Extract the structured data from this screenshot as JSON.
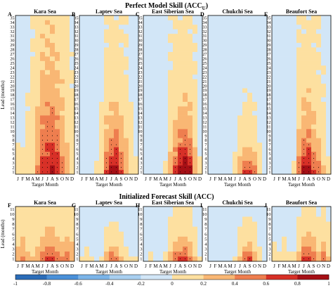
{
  "figure": {
    "top_title_prefix": "Perfect Model Skill (ACC",
    "top_title_sub": "U",
    "top_title_suffix": ")",
    "bottom_title": "Initialized Forecast Skill (ACC)"
  },
  "colors": {
    "scale": [
      "#2b6cb8",
      "#4a90d9",
      "#7bb4e8",
      "#a8cff0",
      "#d2e6f7",
      "#ffffff",
      "#fff2cc",
      "#fde0a0",
      "#f9b774",
      "#ee7e4f",
      "#d73027",
      "#a50f15"
    ],
    "outside": "#ffffff",
    "contour": "#000000"
  },
  "chart_data": [
    {
      "type": "heatmap",
      "id": "perfect_model",
      "ylabel": "Lead (months)",
      "xlabel": "Target Month",
      "x": [
        "J",
        "F",
        "M",
        "A",
        "M",
        "J",
        "J",
        "A",
        "S",
        "O",
        "N",
        "D"
      ],
      "ylim": [
        1,
        35
      ],
      "y_ticks": [
        1,
        2,
        3,
        4,
        5,
        6,
        7,
        8,
        9,
        10,
        11,
        12,
        13,
        14,
        15,
        16,
        17,
        18,
        19,
        20,
        21,
        22,
        23,
        24,
        25,
        26,
        27,
        28,
        29,
        30,
        31,
        32,
        33,
        34,
        35
      ],
      "panels": [
        {
          "letter": "A",
          "title": "Kara Sea",
          "profile": [
            0.05,
            0.05,
            0.08,
            0.15,
            0.35,
            0.55,
            0.6,
            0.65,
            0.55,
            0.4,
            0.25,
            0.1
          ],
          "decay": 18,
          "base": 0.35
        },
        {
          "letter": "B",
          "title": "Laptev Sea",
          "profile": [
            0.0,
            0.0,
            0.02,
            0.05,
            0.15,
            0.5,
            0.7,
            0.75,
            0.55,
            0.35,
            0.15,
            0.05
          ],
          "decay": 10,
          "base": 0.2
        },
        {
          "letter": "C",
          "title": "East Siberian Sea",
          "profile": [
            0.0,
            0.0,
            0.0,
            0.02,
            0.05,
            0.3,
            0.55,
            0.75,
            0.85,
            0.7,
            0.3,
            0.05
          ],
          "decay": 9,
          "base": 0.25
        },
        {
          "letter": "D",
          "title": "Chukchi Sea",
          "profile": [
            0.0,
            0.0,
            0.0,
            0.0,
            0.02,
            0.1,
            0.35,
            0.55,
            0.6,
            0.45,
            0.15,
            0.02
          ],
          "decay": 5,
          "base": 0.1
        },
        {
          "letter": "E",
          "title": "Beaufort Sea",
          "profile": [
            0.0,
            0.0,
            0.0,
            0.02,
            0.05,
            0.45,
            0.7,
            0.75,
            0.55,
            0.4,
            0.2,
            0.05
          ],
          "decay": 9,
          "base": 0.3
        }
      ]
    },
    {
      "type": "heatmap",
      "id": "initialized_forecast",
      "ylabel": "Lead (months)",
      "xlabel": "Target Month",
      "x": [
        "J",
        "F",
        "M",
        "A",
        "M",
        "J",
        "J",
        "A",
        "S",
        "O",
        "N",
        "D"
      ],
      "ylim": [
        1,
        11
      ],
      "y_ticks": [
        1,
        2,
        3,
        4,
        5,
        6,
        7,
        8,
        9,
        10,
        11
      ],
      "panels": [
        {
          "letter": "F",
          "title": "Kara Sea",
          "profile": [
            0.3,
            0.35,
            0.25,
            0.2,
            0.3,
            0.45,
            0.5,
            0.55,
            0.45,
            0.35,
            0.4,
            0.3
          ],
          "decay": 5,
          "base": 0.25
        },
        {
          "letter": "G",
          "title": "Laptev Sea",
          "profile": [
            0.05,
            0.1,
            0.05,
            0.0,
            0.05,
            0.3,
            0.5,
            0.45,
            0.25,
            0.1,
            0.05,
            0.05
          ],
          "decay": 3,
          "base": 0.05
        },
        {
          "letter": "H",
          "title": "East Siberian Sea",
          "profile": [
            0.0,
            0.05,
            0.0,
            0.0,
            0.05,
            0.3,
            0.5,
            0.55,
            0.65,
            0.4,
            0.2,
            0.05
          ],
          "decay": 4,
          "base": 0.1
        },
        {
          "letter": "I",
          "title": "Chukchi Sea",
          "profile": [
            0.0,
            0.0,
            0.0,
            0.0,
            0.0,
            0.05,
            0.25,
            0.5,
            0.55,
            0.35,
            0.1,
            0.0
          ],
          "decay": 3,
          "base": 0.05
        },
        {
          "letter": "J",
          "title": "Beaufort Sea",
          "profile": [
            0.1,
            0.05,
            0.1,
            0.05,
            0.05,
            0.3,
            0.55,
            0.6,
            0.5,
            0.3,
            0.45,
            0.2
          ],
          "decay": 4,
          "base": 0.1
        }
      ]
    }
  ],
  "colorbar": {
    "ticks": [
      "-1",
      "-0.8",
      "-0.6",
      "-0.4",
      "-0.2",
      "0",
      "0.2",
      "0.4",
      "0.6",
      "0.8",
      "1"
    ]
  }
}
